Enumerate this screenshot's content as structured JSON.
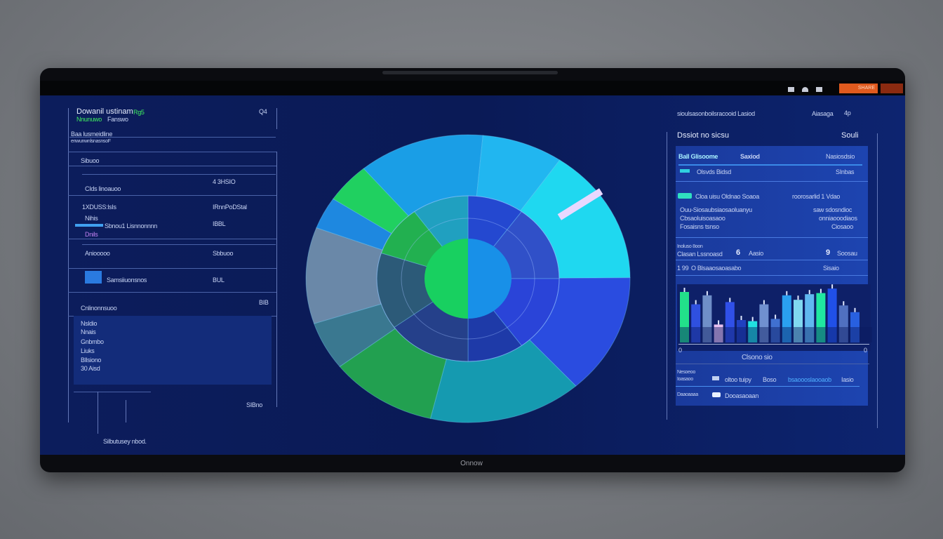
{
  "topbar": {
    "icons": [
      "wifi-icon",
      "gauge-icon",
      "camera-icon"
    ],
    "action_button": "SHARE",
    "corner_icon": "user-icon",
    "accent": "#e05a1e"
  },
  "left_panel": {
    "title": "Dowanil ustinam",
    "title_badge": "Rg5",
    "subtitle_highlight": "Nnunuwo",
    "subtitle": "Fanswo",
    "corner": "Q4",
    "row1": "Baa lusmeidline",
    "row1_sub": "enwunwnlsnasnsoF",
    "section": "Sibuoo",
    "items": [
      {
        "label": "CIds linoauoo",
        "value": "4 3HSIO"
      },
      {
        "label": "1XDUSS:lsIs",
        "value": "IRnnPoDStal"
      },
      {
        "label": "Nihis",
        "value": "IBBL"
      },
      {
        "label": "Sbnou1 Lisnnonnnn",
        "value": ""
      },
      {
        "label": "Dnils",
        "value": ""
      },
      {
        "label": "Aniooooo",
        "value": "Sbbuoo"
      },
      {
        "label": "Samsiiuonsnos",
        "value": "BUL"
      },
      {
        "label": "Cnlinonnsuoo",
        "value": "BIB"
      }
    ],
    "list": [
      "Nsldio",
      "Nnais",
      "Gnbmbo",
      "Liuks",
      "Bllsiono",
      "30 Aisd"
    ],
    "footer": "Silbutusey nbod.",
    "footer_value": "SIBno"
  },
  "pie": {
    "outer": [
      {
        "value": 14,
        "color": "#1a9ee6"
      },
      {
        "value": 9,
        "color": "#21b6f0"
      },
      {
        "value": 17,
        "color": "#1fd8f0"
      },
      {
        "value": 15,
        "color": "#2a4ce0"
      },
      {
        "value": 17,
        "color": "#159ab0"
      },
      {
        "value": 12,
        "color": "#22a050"
      },
      {
        "value": 6,
        "color": "#3a7890"
      },
      {
        "value": 12,
        "color": "#6a88a8"
      },
      {
        "value": 4,
        "color": "#1e88e0"
      },
      {
        "value": 5,
        "color": "#20d060"
      }
    ],
    "inner": [
      {
        "value": 10,
        "color": "#2448d0"
      },
      {
        "value": 15,
        "color": "#3050c8"
      },
      {
        "value": 15,
        "color": "#2a44d8"
      },
      {
        "value": 10,
        "color": "#1e3aa8"
      },
      {
        "value": 15,
        "color": "#25408a"
      },
      {
        "value": 15,
        "color": "#2c5a78"
      },
      {
        "value": 10,
        "color": "#22b050"
      },
      {
        "value": 10,
        "color": "#20a0c0"
      }
    ],
    "center_colors": [
      "#18d060",
      "#1890e8"
    ]
  },
  "right_panel": {
    "header": "sioulsasonboilsracooid Lasiod",
    "header_right": "Aiasaga",
    "header_icon": "4p",
    "title": "Dssiot no sicsu",
    "title_right": "Souli",
    "row1": {
      "label": "Ball Glisoome",
      "mid": "Saxiod",
      "value": "Nasiosdsio"
    },
    "row2": {
      "label": "Olsvds Bidsd",
      "value": "SInbas"
    },
    "rows": [
      {
        "label": "Cloa uisu Oldnao Soaoa",
        "value": "roorosarlid 1 Vdao"
      },
      {
        "label": "Ouu-Siosaubsiaosaoluanyu",
        "value": "saw sdosndioc"
      },
      {
        "label": "Cbsaoluisoasaoo",
        "value": "onniaooodiaos"
      },
      {
        "label": "Fosaisns tsnso",
        "value": "Ciosaoo"
      }
    ],
    "stat1": {
      "label": "Inoluso 8oon",
      "sub": "Clasan Lssnoasd",
      "num": "6",
      "value": "Aasio",
      "num2": "9",
      "value2": "Soosau"
    },
    "stat2": {
      "label": "1 99",
      "sub": "O Blsaaosaoasabo",
      "value": "Sisaio"
    },
    "bars": [
      {
        "value": 90,
        "color": "#22e08a"
      },
      {
        "value": 68,
        "color": "#2f50e0"
      },
      {
        "value": 84,
        "color": "#6f8fc8"
      },
      {
        "value": 32,
        "color": "#e8c0f0"
      },
      {
        "value": 72,
        "color": "#3050e8"
      },
      {
        "value": 40,
        "color": "#2040c0"
      },
      {
        "value": 38,
        "color": "#20e0e0"
      },
      {
        "value": 68,
        "color": "#7090d0"
      },
      {
        "value": 42,
        "color": "#4070d0"
      },
      {
        "value": 84,
        "color": "#2aa0f0"
      },
      {
        "value": 76,
        "color": "#80d8f0"
      },
      {
        "value": 86,
        "color": "#60b8f0"
      },
      {
        "value": 88,
        "color": "#20e8a0"
      },
      {
        "value": 96,
        "color": "#2050e8"
      },
      {
        "value": 66,
        "color": "#5070c0"
      },
      {
        "value": 54,
        "color": "#2860e0"
      }
    ],
    "axis_left": "0",
    "axis_right": "0",
    "chart_caption": "Clsono sio",
    "legend": [
      {
        "label": "Nesoeoo",
        "sub": "Ioasaoo",
        "a": "oltoo tuipy",
        "b": "Boso",
        "c": "bsaoooslaooaob",
        "d": "Iasio"
      },
      {
        "label": "Daaoaaaa",
        "b": "Dooasaoaan"
      }
    ]
  },
  "brand": "Onnow"
}
